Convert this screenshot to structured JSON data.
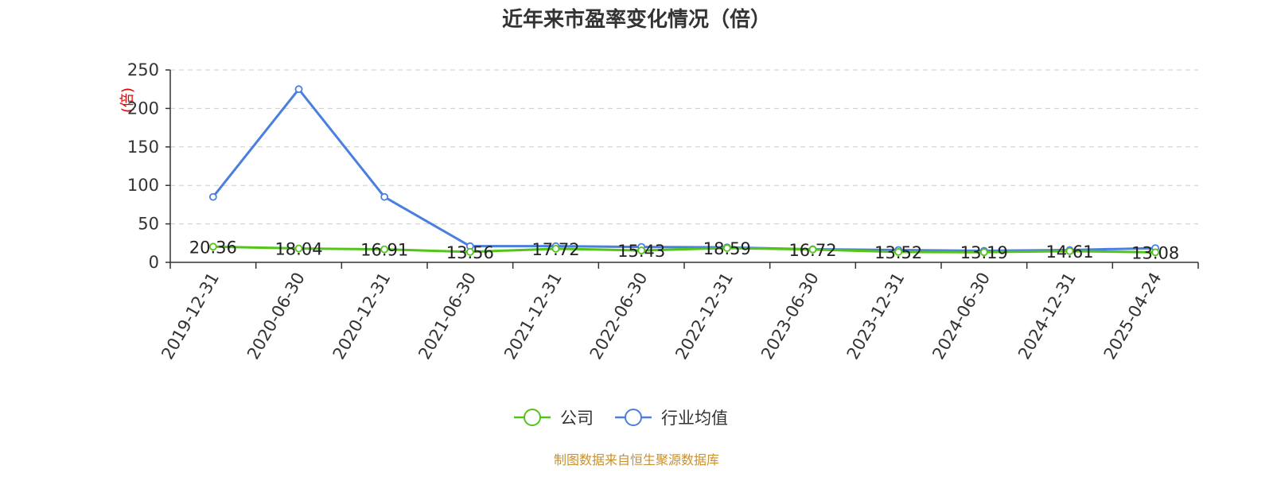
{
  "chart_data": {
    "type": "line",
    "title": "近年来市盈率变化情况（倍）",
    "ylabel": "(倍)",
    "xlabel": "",
    "ylim": [
      0,
      250
    ],
    "yticks": [
      0,
      50,
      100,
      150,
      200,
      250
    ],
    "grid": true,
    "legend_position": "bottom",
    "categories": [
      "2019-12-31",
      "2020-06-30",
      "2020-12-31",
      "2021-06-30",
      "2021-12-31",
      "2022-06-30",
      "2022-12-31",
      "2023-06-30",
      "2023-12-31",
      "2024-06-30",
      "2024-12-31",
      "2025-04-24"
    ],
    "series": [
      {
        "name": "公司",
        "color": "#52c41a",
        "values": [
          20.36,
          18.04,
          16.91,
          13.56,
          17.72,
          15.43,
          18.59,
          16.72,
          13.52,
          13.19,
          14.61,
          13.08
        ],
        "labels": [
          "20.36",
          "18.04",
          "16.91",
          "13.56",
          "17.72",
          "15.43",
          "18.59",
          "16.72",
          "13.52",
          "13.19",
          "14.61",
          "13.08"
        ]
      },
      {
        "name": "行业均值",
        "color": "#4a7fe0",
        "values": [
          85,
          225,
          85,
          21,
          21,
          20,
          19.5,
          17,
          16,
          15,
          16,
          18.5
        ]
      }
    ]
  },
  "source": "制图数据来自恒生聚源数据库"
}
